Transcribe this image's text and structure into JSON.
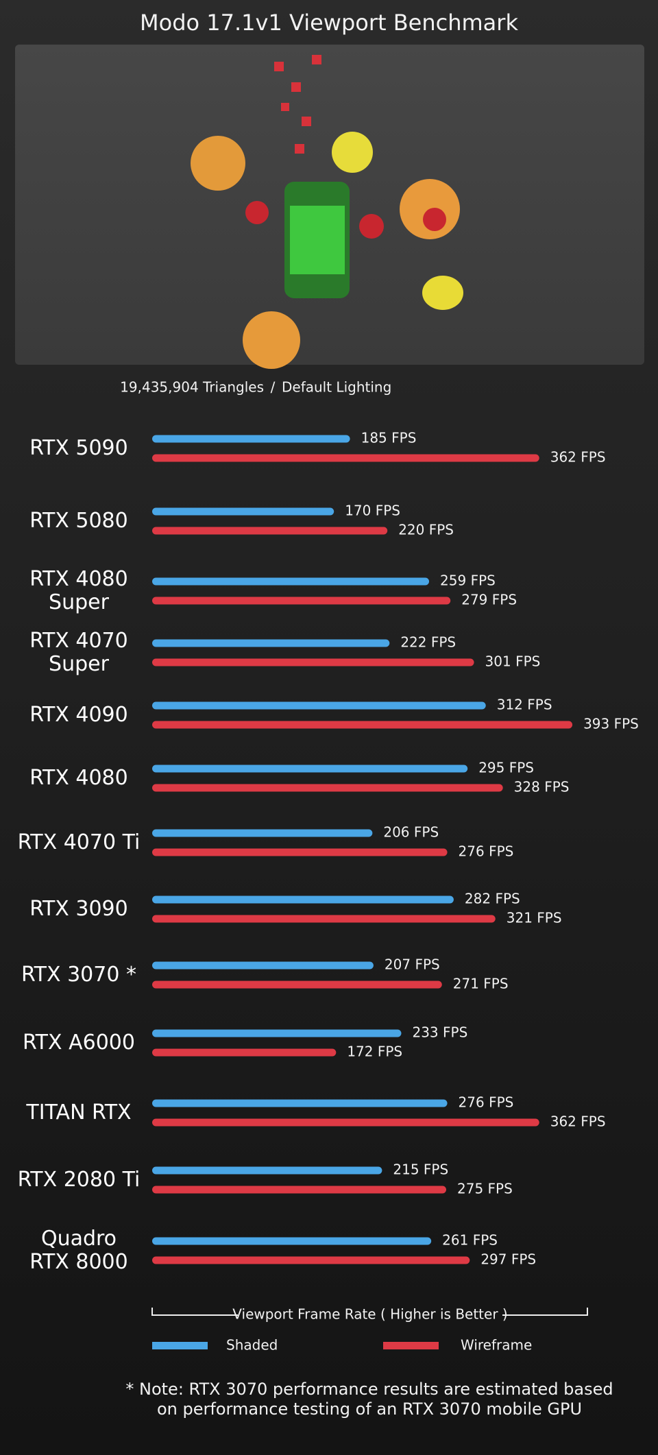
{
  "chart_data": {
    "type": "bar",
    "orientation": "horizontal",
    "title": "Modo 17.1v1 Viewport Benchmark",
    "subtitle": [
      "19,435,904 Triangles",
      "/",
      "Default Lighting"
    ],
    "categories": [
      "RTX 5090",
      "RTX 5080",
      "RTX 4080\nSuper",
      "RTX 4070\nSuper",
      "RTX 4090",
      "RTX 4080",
      "RTX 4070 Ti",
      "RTX 3090",
      "RTX 3070 *",
      "RTX A6000",
      "TITAN RTX",
      "RTX 2080 Ti",
      "Quadro\nRTX 8000"
    ],
    "series": [
      {
        "name": "Shaded",
        "color": "#4aa6e6",
        "values": [
          185,
          170,
          259,
          222,
          312,
          295,
          206,
          282,
          207,
          233,
          276,
          215,
          261
        ],
        "value_labels": [
          "185 FPS",
          "170 FPS",
          "259 FPS",
          "222 FPS",
          "312 FPS",
          "295 FPS",
          "206 FPS",
          "282 FPS",
          "207 FPS",
          "233 FPS",
          "276 FPS",
          "215 FPS",
          "261 FPS"
        ]
      },
      {
        "name": "Wireframe",
        "color": "#de3a45",
        "values": [
          362,
          220,
          279,
          301,
          393,
          328,
          276,
          321,
          271,
          172,
          362,
          275,
          297
        ],
        "value_labels": [
          "362 FPS",
          "220 FPS",
          "279 FPS",
          "301 FPS",
          "393 FPS",
          "328 FPS",
          "276 FPS",
          "321 FPS",
          "271 FPS",
          "172 FPS",
          "362 FPS",
          "275 FPS",
          "297 FPS"
        ]
      }
    ],
    "xlabel": "Viewport Frame Rate ( Higher is Better )",
    "note": [
      "* Note: RTX 3070 performance results are estimated based",
      "on performance testing of an RTX 3070 mobile GPU"
    ]
  }
}
